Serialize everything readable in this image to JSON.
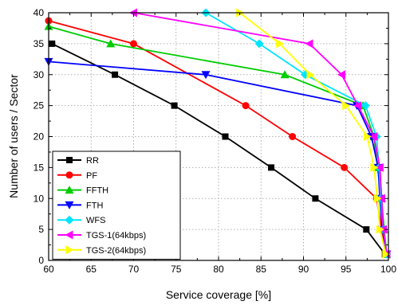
{
  "chart_data": {
    "type": "line",
    "title": "",
    "xlabel": "Service coverage [%]",
    "ylabel": "Number of users / Sector",
    "xlim": [
      60,
      100
    ],
    "ylim": [
      0,
      40
    ],
    "xticks": [
      "60",
      "65",
      "70",
      "75",
      "80",
      "85",
      "90",
      "95",
      "100"
    ],
    "yticks": [
      "0",
      "5",
      "10",
      "15",
      "20",
      "25",
      "30",
      "35",
      "40"
    ],
    "grid": true,
    "legend_position": "bottom-left",
    "series": [
      {
        "name": "RR",
        "color": "#000000",
        "marker": "square",
        "points": [
          [
            60.4,
            35
          ],
          [
            67.8,
            30
          ],
          [
            74.8,
            25
          ],
          [
            80.8,
            20
          ],
          [
            86.2,
            15
          ],
          [
            91.4,
            10
          ],
          [
            97.4,
            5
          ],
          [
            99.6,
            1
          ]
        ]
      },
      {
        "name": "PF",
        "color": "#ff0000",
        "marker": "circle",
        "points": [
          [
            60.0,
            38.7
          ],
          [
            70.0,
            35
          ],
          [
            83.2,
            25
          ],
          [
            88.7,
            20
          ],
          [
            94.8,
            15
          ],
          [
            98.6,
            10
          ],
          [
            99.2,
            5
          ],
          [
            99.8,
            1
          ]
        ]
      },
      {
        "name": "FFTH",
        "color": "#00cc00",
        "marker": "triangle-up",
        "points": [
          [
            60.0,
            37.8
          ],
          [
            67.3,
            35
          ],
          [
            87.8,
            30
          ],
          [
            97.0,
            25
          ],
          [
            98.3,
            20
          ],
          [
            98.7,
            15
          ],
          [
            99.2,
            10
          ],
          [
            99.5,
            5
          ],
          [
            99.8,
            1
          ]
        ]
      },
      {
        "name": "FTH",
        "color": "#0000ff",
        "marker": "triangle-down",
        "points": [
          [
            60.0,
            32.1
          ],
          [
            78.5,
            30
          ],
          [
            96.3,
            25
          ],
          [
            98.0,
            20
          ],
          [
            98.8,
            15
          ],
          [
            99.0,
            10
          ],
          [
            99.3,
            5
          ],
          [
            99.8,
            1
          ]
        ]
      },
      {
        "name": "WFS",
        "color": "#00e5ff",
        "marker": "diamond",
        "points": [
          [
            78.5,
            40
          ],
          [
            84.8,
            35
          ],
          [
            90.2,
            30
          ],
          [
            97.3,
            25
          ],
          [
            98.6,
            20
          ],
          [
            98.9,
            15
          ],
          [
            99.1,
            10
          ],
          [
            99.4,
            5
          ],
          [
            99.8,
            1
          ]
        ]
      },
      {
        "name": "TGS-1(64kbps)",
        "color": "#ff00ff",
        "marker": "triangle-left",
        "points": [
          [
            70.0,
            40
          ],
          [
            90.7,
            35
          ],
          [
            94.5,
            30
          ],
          [
            96.4,
            25
          ],
          [
            98.3,
            20
          ],
          [
            99.0,
            15
          ],
          [
            99.2,
            10
          ],
          [
            99.4,
            5
          ],
          [
            99.8,
            1
          ]
        ]
      },
      {
        "name": "TGS-2(64kbps)",
        "color": "#ffff00",
        "marker": "triangle-right",
        "points": [
          [
            82.5,
            40
          ],
          [
            87.2,
            35
          ],
          [
            90.8,
            30
          ],
          [
            95.0,
            25
          ],
          [
            97.5,
            20
          ],
          [
            98.3,
            15
          ],
          [
            98.7,
            10
          ],
          [
            99.0,
            5
          ],
          [
            99.7,
            1
          ]
        ]
      }
    ]
  }
}
